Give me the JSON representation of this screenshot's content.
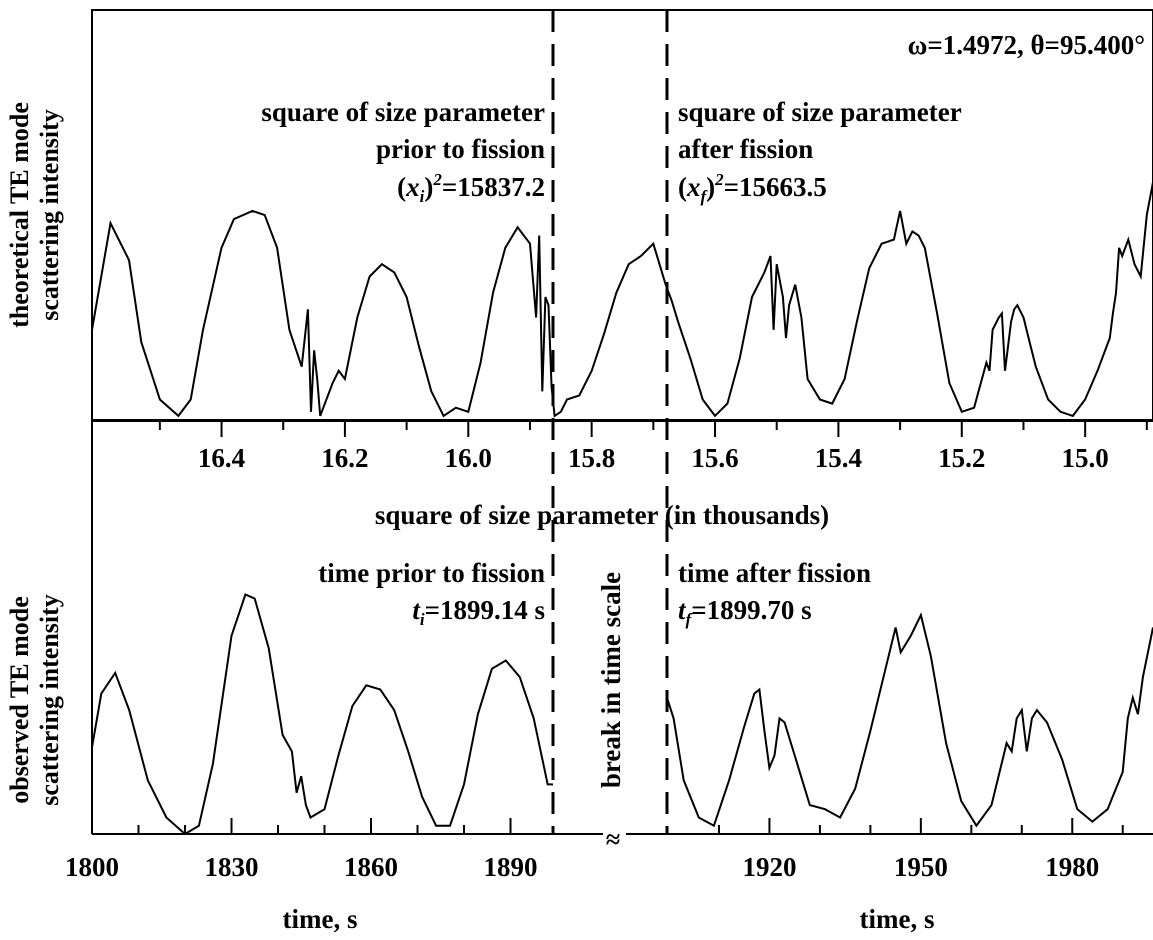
{
  "chart_data": [
    {
      "type": "line",
      "panel": "top",
      "ylabel_line1": "theoretical TE mode",
      "ylabel_line2": "scattering intensity",
      "xlabel": "square of size parameter (in thousands)",
      "x_axis_reversed": true,
      "x_tick_labels": [
        "16.4",
        "16.2",
        "16.0",
        "15.8",
        "15.6",
        "15.4",
        "15.2",
        "15.0"
      ],
      "x_tick_values": [
        16.4,
        16.2,
        16.0,
        15.8,
        15.6,
        15.4,
        15.2,
        15.0
      ],
      "xlim": [
        16.61,
        14.89
      ],
      "ylim": [
        0,
        1
      ],
      "annotation_params": "ω=1.4972, θ=95.400°",
      "left_annotation": [
        "square of size parameter",
        "prior to fission",
        "(xi)2=15837.2"
      ],
      "right_annotation": [
        "square of size parameter",
        "after fission",
        "(xf)2=15663.5"
      ],
      "dashed_markers": [
        15837.2,
        15663.5
      ],
      "series": [
        {
          "x": [
            16.61,
            16.58,
            16.55,
            16.53,
            16.5,
            16.47,
            16.45,
            16.43,
            16.4,
            16.38,
            16.35,
            16.33,
            16.31,
            16.29,
            16.27,
            16.26,
            16.255,
            16.25,
            16.245,
            16.24,
            16.22,
            16.21,
            16.2,
            16.18,
            16.16,
            16.14,
            16.12,
            16.1,
            16.08,
            16.06,
            16.04,
            16.02,
            16.0,
            15.98,
            15.96,
            15.94,
            15.92,
            15.9,
            15.89,
            15.885,
            15.88,
            15.875,
            15.87,
            15.865,
            15.86,
            15.85,
            15.84,
            15.82,
            15.8,
            15.78,
            15.76,
            15.74,
            15.72,
            15.7,
            15.69,
            15.68,
            15.67,
            15.66,
            15.64,
            15.62,
            15.6,
            15.58,
            15.56,
            15.54,
            15.52,
            15.51,
            15.505,
            15.5,
            15.49,
            15.485,
            15.48,
            15.47,
            15.46,
            15.45,
            15.43,
            15.41,
            15.39,
            15.37,
            15.35,
            15.33,
            15.31,
            15.3,
            15.29,
            15.28,
            15.27,
            15.26,
            15.24,
            15.22,
            15.2,
            15.18,
            15.16,
            15.155,
            15.15,
            15.14,
            15.135,
            15.13,
            15.12,
            15.115,
            15.11,
            15.1,
            15.09,
            15.08,
            15.06,
            15.04,
            15.02,
            15.0,
            14.98,
            14.96,
            14.955,
            14.95,
            14.945,
            14.94,
            14.93,
            14.92,
            14.91,
            14.9,
            14.89
          ],
          "y": [
            0.22,
            0.48,
            0.39,
            0.19,
            0.05,
            0.01,
            0.05,
            0.22,
            0.42,
            0.49,
            0.51,
            0.5,
            0.42,
            0.22,
            0.13,
            0.27,
            0.02,
            0.17,
            0.1,
            0.01,
            0.09,
            0.12,
            0.1,
            0.25,
            0.35,
            0.38,
            0.36,
            0.3,
            0.18,
            0.07,
            0.01,
            0.03,
            0.02,
            0.14,
            0.31,
            0.42,
            0.47,
            0.43,
            0.25,
            0.45,
            0.07,
            0.3,
            0.28,
            0.08,
            0.01,
            0.02,
            0.05,
            0.06,
            0.12,
            0.21,
            0.31,
            0.38,
            0.4,
            0.43,
            0.38,
            0.33,
            0.29,
            0.24,
            0.15,
            0.05,
            0.01,
            0.04,
            0.15,
            0.3,
            0.36,
            0.4,
            0.22,
            0.38,
            0.3,
            0.2,
            0.28,
            0.33,
            0.25,
            0.1,
            0.05,
            0.04,
            0.1,
            0.24,
            0.37,
            0.43,
            0.44,
            0.51,
            0.43,
            0.46,
            0.45,
            0.42,
            0.26,
            0.09,
            0.02,
            0.03,
            0.14,
            0.12,
            0.22,
            0.25,
            0.26,
            0.12,
            0.24,
            0.27,
            0.28,
            0.25,
            0.19,
            0.13,
            0.05,
            0.02,
            0.01,
            0.05,
            0.12,
            0.2,
            0.26,
            0.31,
            0.42,
            0.4,
            0.44,
            0.38,
            0.35,
            0.5,
            0.58
          ]
        }
      ]
    },
    {
      "type": "line",
      "panel": "bottom",
      "ylabel_line1": "observed TE mode",
      "ylabel_line2": "scattering intensity",
      "xlabel": "time, s",
      "x_tick_labels": [
        "1800",
        "1830",
        "1860",
        "1890",
        "1920",
        "1950",
        "1980"
      ],
      "x_tick_values": [
        1800,
        1830,
        1860,
        1890,
        1920,
        1950,
        1980
      ],
      "ylim": [
        0,
        1
      ],
      "annotation_break": "break in time scale",
      "break_symbol": "≈",
      "left_annotation": [
        "time prior to fission",
        "ti=1899.14 s"
      ],
      "right_annotation": [
        "time after fission",
        "tf=1899.70 s"
      ],
      "dashed_markers": [
        "1899.14",
        "1899.70"
      ],
      "series": [
        {
          "segment": "before",
          "x": [
            1800,
            1802,
            1805,
            1808,
            1812,
            1816,
            1820,
            1823,
            1826,
            1830,
            1833,
            1835,
            1838,
            1841,
            1843,
            1844,
            1845,
            1846,
            1847,
            1850,
            1853,
            1856,
            1859,
            1862,
            1865,
            1868,
            1871,
            1874,
            1877,
            1880,
            1883,
            1886,
            1889,
            1892,
            1895,
            1898,
            1899.14
          ],
          "y": [
            0.21,
            0.34,
            0.39,
            0.3,
            0.13,
            0.04,
            0.0,
            0.02,
            0.17,
            0.48,
            0.58,
            0.57,
            0.45,
            0.24,
            0.2,
            0.1,
            0.14,
            0.07,
            0.04,
            0.06,
            0.19,
            0.31,
            0.36,
            0.35,
            0.3,
            0.2,
            0.09,
            0.02,
            0.02,
            0.12,
            0.29,
            0.4,
            0.42,
            0.38,
            0.28,
            0.12,
            0.12
          ]
        },
        {
          "segment": "after",
          "x": [
            1899.7,
            1901,
            1903,
            1906,
            1909,
            1912,
            1915,
            1917,
            1918,
            1919,
            1920,
            1921,
            1922,
            1923,
            1925,
            1928,
            1931,
            1934,
            1937,
            1940,
            1943,
            1945,
            1946,
            1948,
            1950,
            1952,
            1955,
            1958,
            1961,
            1964,
            1966,
            1967,
            1968,
            1969,
            1970,
            1971,
            1972,
            1973,
            1975,
            1978,
            1981,
            1984,
            1987,
            1990,
            1991,
            1992,
            1993,
            1994,
            1996
          ],
          "y": [
            0.33,
            0.28,
            0.13,
            0.04,
            0.02,
            0.13,
            0.26,
            0.34,
            0.35,
            0.25,
            0.16,
            0.19,
            0.28,
            0.27,
            0.19,
            0.07,
            0.06,
            0.04,
            0.11,
            0.25,
            0.4,
            0.5,
            0.44,
            0.48,
            0.53,
            0.43,
            0.22,
            0.08,
            0.02,
            0.07,
            0.17,
            0.22,
            0.2,
            0.28,
            0.3,
            0.2,
            0.28,
            0.3,
            0.27,
            0.18,
            0.06,
            0.03,
            0.06,
            0.15,
            0.28,
            0.33,
            0.29,
            0.38,
            0.5
          ]
        }
      ]
    }
  ]
}
